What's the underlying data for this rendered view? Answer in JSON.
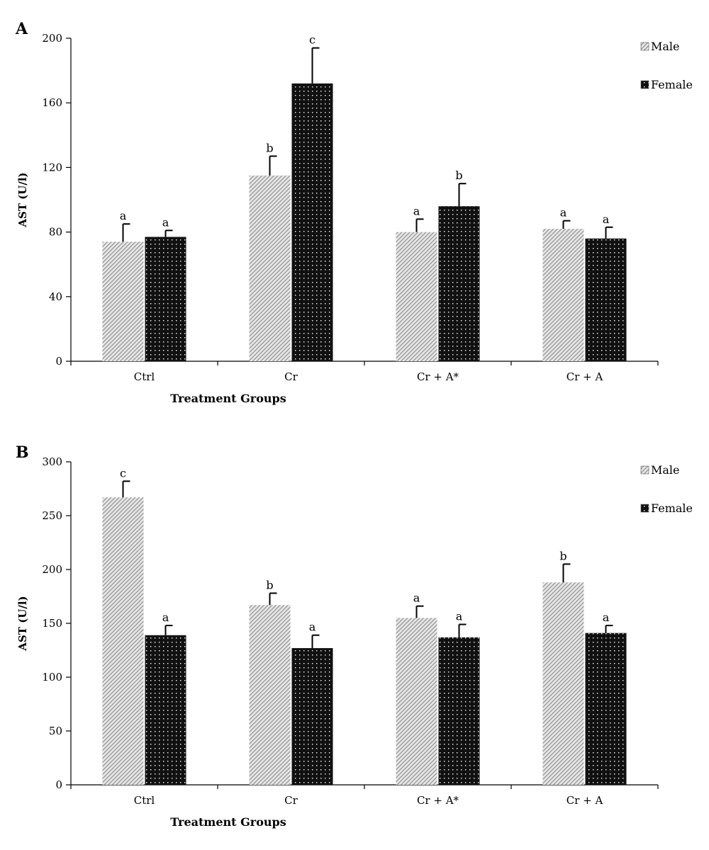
{
  "colors": {
    "male_fill": "#8a8a8a",
    "female_fill": "#111111",
    "axis": "#000000",
    "background": "#ffffff"
  },
  "chart_data": [
    {
      "panel_label": "A",
      "type": "bar",
      "categories": [
        "Ctrl",
        "Cr",
        "Cr + A*",
        "Cr + A"
      ],
      "series": [
        {
          "name": "Male",
          "values": [
            74,
            115,
            80,
            82
          ],
          "errors": [
            11,
            12,
            8,
            5
          ],
          "letters": [
            "a",
            "b",
            "a",
            "a"
          ]
        },
        {
          "name": "Female",
          "values": [
            77,
            172,
            96,
            76
          ],
          "errors": [
            4,
            22,
            14,
            7
          ],
          "letters": [
            "a",
            "c",
            "b",
            "a"
          ]
        }
      ],
      "xlabel": "Treatment Groups",
      "ylabel": "AST (U/l)",
      "ylim": [
        0,
        200
      ],
      "yticks": [
        0,
        40,
        80,
        120,
        160,
        200
      ],
      "legend": "top-right",
      "grid": false
    },
    {
      "panel_label": "B",
      "type": "bar",
      "categories": [
        "Ctrl",
        "Cr",
        "Cr + A*",
        "Cr + A"
      ],
      "series": [
        {
          "name": "Male",
          "values": [
            267,
            167,
            155,
            188
          ],
          "errors": [
            15,
            11,
            11,
            17
          ],
          "letters": [
            "c",
            "b",
            "a",
            "b"
          ]
        },
        {
          "name": "Female",
          "values": [
            139,
            127,
            137,
            141
          ],
          "errors": [
            9,
            12,
            12,
            7
          ],
          "letters": [
            "a",
            "a",
            "a",
            "a"
          ]
        }
      ],
      "xlabel": "Treatment Groups",
      "ylabel": "AST (U/l)",
      "ylim": [
        0,
        300
      ],
      "yticks": [
        0,
        50,
        100,
        150,
        200,
        250,
        300
      ],
      "legend": "top-right",
      "grid": false
    }
  ]
}
